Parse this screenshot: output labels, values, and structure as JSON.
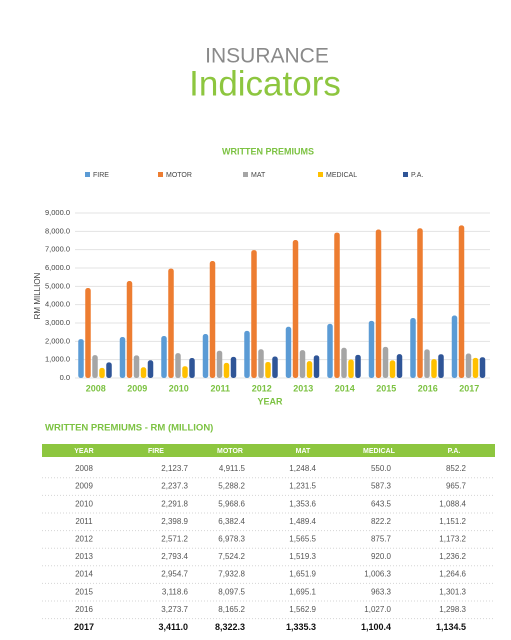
{
  "header": {
    "kicker": "INSURANCE",
    "title": "Indicators"
  },
  "chart_data": {
    "type": "bar",
    "title": "WRITTEN PREMIUMS",
    "x_label": "YEAR",
    "y_label": "RM MILLION",
    "categories": [
      "2008",
      "2009",
      "2010",
      "2011",
      "2012",
      "2013",
      "2014",
      "2015",
      "2016",
      "2017"
    ],
    "series": [
      {
        "name": "FIRE",
        "color": "#5b9bd5",
        "values": [
          2123.7,
          2237.3,
          2291.8,
          2398.9,
          2571.2,
          2793.4,
          2954.7,
          3118.6,
          3273.7,
          3411.0
        ]
      },
      {
        "name": "MOTOR",
        "color": "#ed7d31",
        "values": [
          4911.5,
          5288.2,
          5968.6,
          6382.4,
          6978.3,
          7524.2,
          7932.8,
          8097.5,
          8165.2,
          8322.3
        ]
      },
      {
        "name": "MAT",
        "color": "#a5a5a5",
        "values": [
          1248.4,
          1231.5,
          1353.6,
          1489.4,
          1565.5,
          1519.3,
          1651.9,
          1695.1,
          1562.9,
          1335.3
        ]
      },
      {
        "name": "MEDICAL",
        "color": "#ffc000",
        "values": [
          550.0,
          587.3,
          643.5,
          822.2,
          875.7,
          920.0,
          1006.3,
          963.3,
          1027.0,
          1100.4
        ]
      },
      {
        "name": "P.A.",
        "color": "#2f5597",
        "values": [
          852.2,
          965.7,
          1088.4,
          1151.2,
          1173.2,
          1236.2,
          1264.6,
          1301.3,
          1298.3,
          1134.5
        ]
      }
    ],
    "ylim": [
      0,
      9000
    ],
    "yticks": [
      {
        "value": 0,
        "label": "0.0"
      },
      {
        "value": 1000,
        "label": "1,000.0"
      },
      {
        "value": 2000,
        "label": "2,000.0"
      },
      {
        "value": 3000,
        "label": "3,000.0"
      },
      {
        "value": 4000,
        "label": "4,000.0"
      },
      {
        "value": 5000,
        "label": "5,000.0"
      },
      {
        "value": 6000,
        "label": "6,000.0"
      },
      {
        "value": 7000,
        "label": "7,000.0"
      },
      {
        "value": 8000,
        "label": "8,000.0"
      },
      {
        "value": 9000,
        "label": "9,000.0"
      }
    ],
    "grid": true,
    "legend": "top"
  },
  "table": {
    "title": "WRITTEN PREMIUMS - RM (MILLION)",
    "columns": [
      "YEAR",
      "FIRE",
      "MOTOR",
      "MAT",
      "MEDICAL",
      "P.A."
    ],
    "rows": [
      [
        "2008",
        "2,123.7",
        "4,911.5",
        "1,248.4",
        "550.0",
        "852.2"
      ],
      [
        "2009",
        "2,237.3",
        "5,288.2",
        "1,231.5",
        "587.3",
        "965.7"
      ],
      [
        "2010",
        "2,291.8",
        "5,968.6",
        "1,353.6",
        "643.5",
        "1,088.4"
      ],
      [
        "2011",
        "2,398.9",
        "6,382.4",
        "1,489.4",
        "822.2",
        "1,151.2"
      ],
      [
        "2012",
        "2,571.2",
        "6,978.3",
        "1,565.5",
        "875.7",
        "1,173.2"
      ],
      [
        "2013",
        "2,793.4",
        "7,524.2",
        "1,519.3",
        "920.0",
        "1,236.2"
      ],
      [
        "2014",
        "2,954.7",
        "7,932.8",
        "1,651.9",
        "1,006.3",
        "1,264.6"
      ],
      [
        "2015",
        "3,118.6",
        "8,097.5",
        "1,695.1",
        "963.3",
        "1,301.3"
      ],
      [
        "2016",
        "3,273.7",
        "8,165.2",
        "1,562.9",
        "1,027.0",
        "1,298.3"
      ],
      [
        "2017",
        "3,411.0",
        "8,322.3",
        "1,335.3",
        "1,100.4",
        "1,134.5"
      ]
    ]
  }
}
